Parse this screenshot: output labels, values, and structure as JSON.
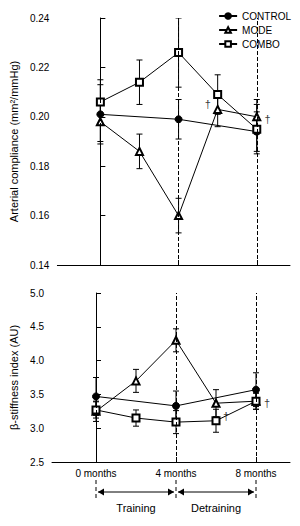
{
  "chart_data": [
    {
      "type": "line",
      "y_label": "Arterial compliance (mm²/mmHg)",
      "x": [
        0,
        2,
        4,
        6,
        8
      ],
      "xlim": [
        -2.2,
        9.7
      ],
      "xticks": [
        0,
        4,
        8
      ],
      "tick_labels": "y",
      "ylim": [
        0.14,
        0.24
      ],
      "yticks": [
        0.14,
        0.16,
        0.18,
        {
          "value": 0.2,
          "label": "0.20"
        },
        0.22,
        0.24
      ],
      "grid": false,
      "legend": "top-right",
      "reference_lines": [
        0,
        4,
        8
      ],
      "series": [
        {
          "name": "CONTROL",
          "color": "#000000",
          "marker": "circle-filled",
          "values": [
            0.201,
            null,
            0.199,
            null,
            0.194
          ],
          "errors": [
            0.012,
            null,
            0.008,
            null,
            0.008
          ]
        },
        {
          "name": "MODE",
          "color": "#000000",
          "marker": "triangle-open",
          "values": [
            0.198,
            0.186,
            0.16,
            0.203,
            0.2
          ],
          "errors": [
            0.008,
            0.007,
            0.007,
            0.007,
            0.007
          ]
        },
        {
          "name": "COMBO",
          "color": "#000000",
          "marker": "square-open",
          "values": [
            0.206,
            0.214,
            0.226,
            0.209,
            0.195
          ],
          "errors": [
            0.009,
            0.009,
            0.014,
            0.008,
            0.01
          ]
        }
      ],
      "annotations": [
        {
          "text": "†",
          "x": 5.5,
          "y": 0.205
        },
        {
          "text": "†",
          "x": 8.55,
          "y": 0.199
        }
      ]
    },
    {
      "type": "line",
      "y_label": "β-stiffness index (AU)",
      "x": [
        0,
        2,
        4,
        6,
        8
      ],
      "xlim": [
        -2.2,
        9.7
      ],
      "xticks": [
        {
          "value": 0,
          "label": "0 months"
        },
        {
          "value": 4,
          "label": "4 months"
        },
        {
          "value": 8,
          "label": "8 months"
        }
      ],
      "ylim": [
        2.5,
        5.0
      ],
      "yticks": [
        2.5,
        {
          "value": 3,
          "label": "3.0"
        },
        3.5,
        {
          "value": 4,
          "label": "4.0"
        },
        4.5,
        {
          "value": 5,
          "label": "5.0"
        }
      ],
      "grid": false,
      "reference_lines": [
        0,
        4,
        8
      ],
      "series": [
        {
          "name": "CONTROL",
          "color": "#000000",
          "marker": "circle-filled",
          "values": [
            3.47,
            null,
            3.33,
            null,
            3.57
          ],
          "errors": [
            0.28,
            null,
            0.22,
            null,
            0.25
          ]
        },
        {
          "name": "MODE",
          "color": "#000000",
          "marker": "triangle-open",
          "values": [
            3.25,
            3.7,
            4.3,
            3.37,
            3.4
          ],
          "errors": [
            0.15,
            0.17,
            0.17,
            0.2,
            0.12
          ]
        },
        {
          "name": "COMBO",
          "color": "#000000",
          "marker": "square-open",
          "values": [
            3.27,
            3.15,
            3.09,
            3.11,
            3.4
          ],
          "errors": [
            0.12,
            0.12,
            0.17,
            0.17,
            0.12
          ]
        }
      ],
      "annotations": [
        {
          "text": "†",
          "x": 6.5,
          "y": 3.18
        },
        {
          "text": "†",
          "x": 8.55,
          "y": 3.38
        }
      ],
      "phases": [
        {
          "label": "Training",
          "from": 0,
          "to": 4
        },
        {
          "label": "Detraining",
          "from": 4,
          "to": 8
        }
      ]
    }
  ]
}
